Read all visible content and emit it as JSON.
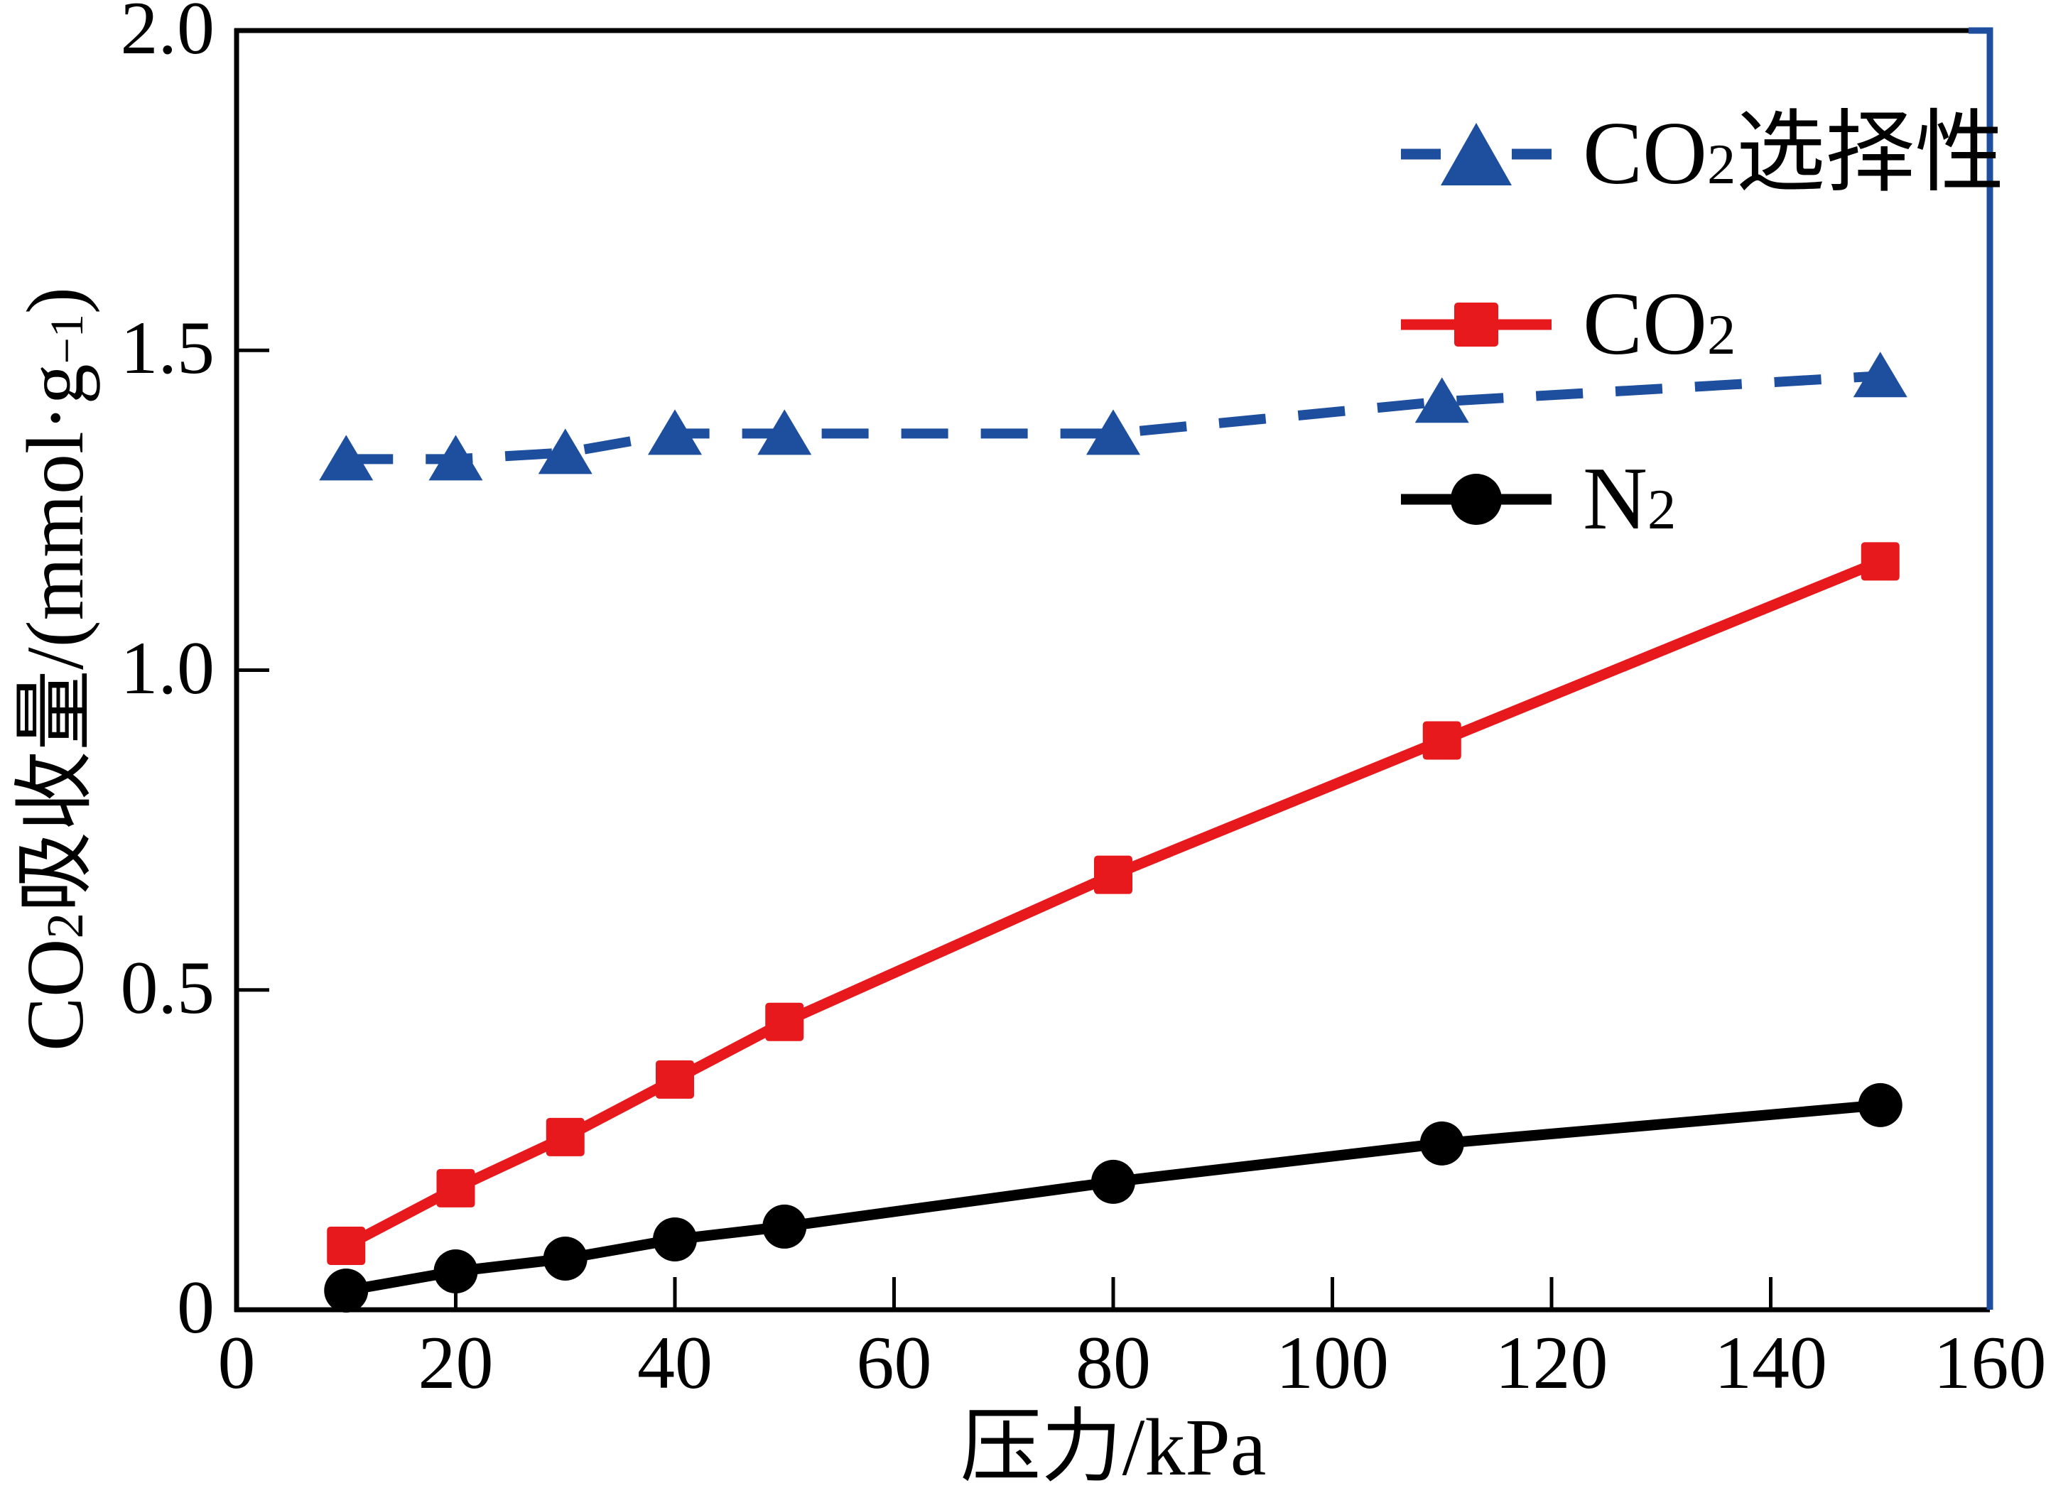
{
  "figure": {
    "background": "#ffffff",
    "frame_right_color": "#1e4f9f",
    "frame_black_color": "#000000"
  },
  "axes": {
    "x": {
      "label": "压力/kPa",
      "tick_labels": [
        "0",
        "20",
        "40",
        "60",
        "80",
        "100",
        "120",
        "140",
        "160"
      ],
      "tick_values": [
        0,
        20,
        40,
        60,
        80,
        100,
        120,
        140,
        160
      ],
      "min": 0,
      "max": 160
    },
    "y": {
      "label": "CO2吸收量/(mmol·g−1)",
      "label_parts": [
        [
          "text",
          "CO"
        ],
        [
          "sub",
          "2"
        ],
        [
          "text",
          "吸收量/(mmol·g"
        ],
        [
          "sup",
          "−1"
        ],
        [
          "text",
          ")"
        ]
      ],
      "tick_labels": [
        "0",
        "0.5",
        "1.0",
        "1.5",
        "2.0"
      ],
      "tick_values": [
        0,
        0.5,
        1.0,
        1.5,
        2.0
      ],
      "min": 0,
      "max": 2
    }
  },
  "legend": {
    "position": "upper right",
    "items": [
      {
        "id": "co2-selectivity",
        "label_parts": [
          [
            "text",
            "CO"
          ],
          [
            "sub",
            "2"
          ],
          [
            "text",
            "选择性"
          ]
        ],
        "label": "CO2选择性",
        "color": "#1e4f9f",
        "marker": "triangle",
        "line": "dashed"
      },
      {
        "id": "co2",
        "label_parts": [
          [
            "text",
            "CO"
          ],
          [
            "sub",
            "2"
          ]
        ],
        "label": "CO2",
        "color": "#e8191c",
        "marker": "square",
        "line": "solid"
      },
      {
        "id": "n2",
        "label_parts": [
          [
            "text",
            "N"
          ],
          [
            "sub",
            "2"
          ]
        ],
        "label": "N2",
        "color": "#000000",
        "marker": "circle",
        "line": "solid"
      }
    ]
  },
  "chart_data": {
    "type": "line",
    "x": [
      10,
      20,
      30,
      40,
      50,
      80,
      110,
      150
    ],
    "series": [
      {
        "name": "CO2选择性",
        "marker": "triangle",
        "line": "dashed",
        "color": "#1e4f9f",
        "values": [
          1.33,
          1.33,
          1.34,
          1.37,
          1.37,
          1.37,
          1.42,
          1.46
        ]
      },
      {
        "name": "CO2",
        "marker": "square",
        "line": "solid",
        "color": "#e8191c",
        "values": [
          0.1,
          0.19,
          0.27,
          0.36,
          0.45,
          0.68,
          0.89,
          1.17
        ]
      },
      {
        "name": "N2",
        "marker": "circle",
        "line": "solid",
        "color": "#000000",
        "values": [
          0.03,
          0.06,
          0.08,
          0.11,
          0.13,
          0.2,
          0.26,
          0.32
        ]
      }
    ],
    "xlabel": "压力/kPa",
    "ylabel": "CO2吸收量/(mmol·g−1)",
    "xlim": [
      0,
      160
    ],
    "ylim": [
      0,
      2
    ],
    "grid": false,
    "legend_position": "upper right"
  }
}
